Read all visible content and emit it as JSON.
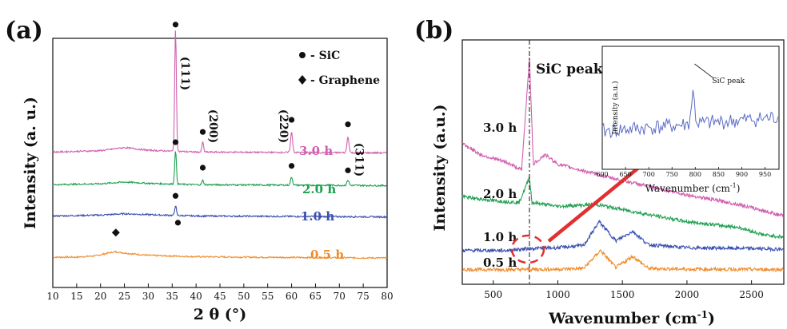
{
  "chart_data": [
    {
      "panel": "(a)",
      "type": "line",
      "xlabel": "2 θ (°)",
      "ylabel": "Intensity (a. u.)",
      "xlim": [
        10,
        80
      ],
      "xticks": [
        10,
        15,
        20,
        25,
        30,
        35,
        40,
        45,
        50,
        55,
        60,
        65,
        70,
        75,
        80
      ],
      "legend": [
        {
          "marker": "circle",
          "label": "- SiC"
        },
        {
          "marker": "diamond",
          "label": "- Graphene"
        }
      ],
      "series": [
        {
          "name": "0.5 h",
          "color": "#f08c2c",
          "offset": 0.0,
          "base": [
            [
              10,
              0.0
            ],
            [
              15,
              0.0
            ],
            [
              19,
              0.03
            ],
            [
              22,
              0.1
            ],
            [
              23,
              0.12
            ],
            [
              26,
              0.08
            ],
            [
              30,
              0.04
            ],
            [
              40,
              0.01
            ],
            [
              50,
              0.0
            ],
            [
              80,
              -0.02
            ]
          ],
          "peaks": []
        },
        {
          "name": "1.0 h",
          "color": "#3a4fb0",
          "offset": 0.92,
          "base": [
            [
              10,
              0.0
            ],
            [
              20,
              0.02
            ],
            [
              25,
              0.05
            ],
            [
              30,
              0.03
            ],
            [
              40,
              0.0
            ],
            [
              80,
              -0.02
            ]
          ],
          "peaks": [
            [
              35.7,
              0.22,
              0.25
            ]
          ]
        },
        {
          "name": "2.0 h",
          "color": "#1fa050",
          "offset": 1.62,
          "base": [
            [
              10,
              0.0
            ],
            [
              20,
              0.02
            ],
            [
              25,
              0.06
            ],
            [
              30,
              0.03
            ],
            [
              40,
              0.0
            ],
            [
              80,
              -0.02
            ]
          ],
          "peaks": [
            [
              35.7,
              0.75,
              0.25
            ],
            [
              41.4,
              0.1,
              0.25
            ],
            [
              60.0,
              0.18,
              0.3
            ],
            [
              71.8,
              0.12,
              0.3
            ]
          ]
        },
        {
          "name": "3.0 h",
          "color": "#d060b0",
          "offset": 2.35,
          "base": [
            [
              10,
              0.0
            ],
            [
              20,
              0.03
            ],
            [
              25,
              0.1
            ],
            [
              30,
              0.04
            ],
            [
              40,
              0.0
            ],
            [
              80,
              -0.02
            ]
          ],
          "peaks": [
            [
              35.7,
              2.7,
              0.25
            ],
            [
              41.4,
              0.22,
              0.25
            ],
            [
              60.0,
              0.45,
              0.3
            ],
            [
              71.8,
              0.35,
              0.3
            ]
          ]
        }
      ],
      "annotations": [
        {
          "text": "(111)",
          "x": 37.5,
          "rotate": 90
        },
        {
          "text": "(200)",
          "x": 43.5,
          "rotate": 90
        },
        {
          "text": "(220)",
          "x": 58.0,
          "rotate": 90
        },
        {
          "text": "(311)",
          "x": 74.0,
          "rotate": 90
        }
      ]
    },
    {
      "panel": "(b)",
      "type": "line",
      "xlabel": "Wavenumber (cm",
      "xlabel_sup": "-1",
      "xlabel_end": ")",
      "ylabel": "Intensity (a.u.)",
      "xlim": [
        260,
        2750
      ],
      "xticks": [
        500,
        1000,
        1500,
        2000,
        2500
      ],
      "marker_line_x": 780,
      "marker_line_label": "SiC peak",
      "series": [
        {
          "name": "0.5 h",
          "color": "#f08c2c",
          "profile": [
            [
              260,
              0.05
            ],
            [
              600,
              0.05
            ],
            [
              1000,
              0.06
            ],
            [
              1200,
              0.08
            ],
            [
              1330,
              0.55
            ],
            [
              1450,
              0.1
            ],
            [
              1580,
              0.4
            ],
            [
              1700,
              0.08
            ],
            [
              2000,
              0.06
            ],
            [
              2750,
              0.05
            ]
          ]
        },
        {
          "name": "1.0 h",
          "color": "#3a4fb0",
          "profile": [
            [
              260,
              0.55
            ],
            [
              600,
              0.55
            ],
            [
              780,
              0.6
            ],
            [
              1000,
              0.62
            ],
            [
              1200,
              0.68
            ],
            [
              1320,
              1.3
            ],
            [
              1450,
              0.8
            ],
            [
              1580,
              1.05
            ],
            [
              1700,
              0.7
            ],
            [
              2000,
              0.62
            ],
            [
              2500,
              0.6
            ],
            [
              2750,
              0.58
            ]
          ]
        },
        {
          "name": "2.0 h",
          "color": "#1fa050",
          "profile": [
            [
              260,
              1.95
            ],
            [
              500,
              1.85
            ],
            [
              700,
              1.8
            ],
            [
              780,
              2.45
            ],
            [
              800,
              1.8
            ],
            [
              1000,
              1.7
            ],
            [
              1300,
              1.75
            ],
            [
              1600,
              1.55
            ],
            [
              2000,
              1.3
            ],
            [
              2400,
              1.15
            ],
            [
              2600,
              0.95
            ],
            [
              2750,
              0.9
            ]
          ]
        },
        {
          "name": "3.0 h",
          "color": "#d060b0",
          "profile": [
            [
              260,
              3.35
            ],
            [
              400,
              3.05
            ],
            [
              600,
              2.85
            ],
            [
              720,
              2.65
            ],
            [
              780,
              5.6
            ],
            [
              810,
              2.8
            ],
            [
              900,
              3.05
            ],
            [
              1000,
              2.8
            ],
            [
              1400,
              2.45
            ],
            [
              2000,
              2.0
            ],
            [
              2400,
              1.75
            ],
            [
              2750,
              1.45
            ]
          ]
        }
      ],
      "inset": {
        "xlabel": "Wavenumber (cm",
        "xlabel_sup": "-1",
        "xlabel_end": ")",
        "ylabel": "Intensity (a.u.)",
        "xlim": [
          600,
          980
        ],
        "xticks": [
          600,
          650,
          700,
          750,
          800,
          850,
          900,
          950
        ],
        "annotation": "SiC peak",
        "peak_x": 795,
        "color": "#5b6bc4"
      }
    }
  ]
}
